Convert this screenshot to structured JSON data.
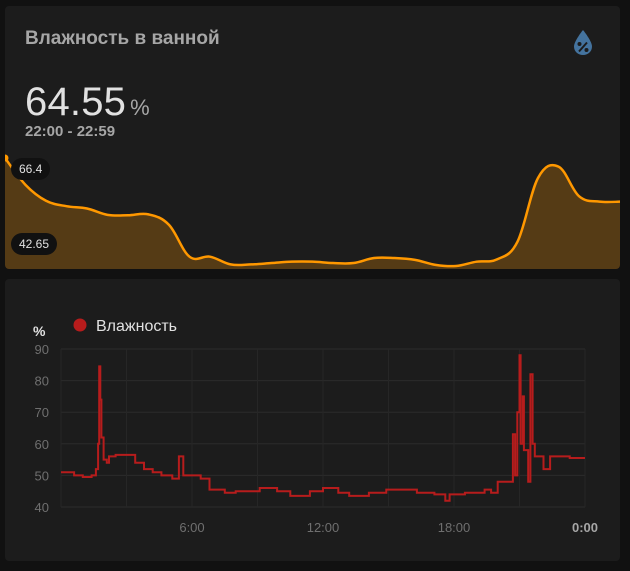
{
  "sensor": {
    "title": "Влажность в ванной",
    "value": "64.55",
    "unit": "%",
    "range": "22:00 - 22:59",
    "max_label": "66.4",
    "min_label": "42.65",
    "icon": "water-percent-icon",
    "accent_color": "#ff9800"
  },
  "history": {
    "unit_label": "%",
    "legend_label": "Влажность",
    "series_color": "#b71c1c"
  },
  "chart_data": [
    {
      "type": "area",
      "series": [
        {
          "values": [
            66.4,
            60.5,
            57.0,
            55.8,
            55.3,
            53.9,
            53.8,
            54.0,
            51.7,
            44.7,
            44.7,
            43.0,
            43.0,
            43.3,
            43.6,
            43.6,
            43.3,
            43.3,
            44.4,
            44.4,
            44.0,
            42.9,
            42.65,
            43.6,
            44.1,
            48.0,
            62.0,
            64.5,
            58.0,
            56.8,
            56.8
          ]
        }
      ]
    },
    {
      "type": "line",
      "ylabel": "%",
      "ylim": [
        40,
        90
      ],
      "y_ticks": [
        "40",
        "50",
        "60",
        "70",
        "80",
        "90"
      ],
      "x_ticks": [
        "6:00",
        "12:00",
        "18:00",
        "0:00"
      ],
      "x_tick_hours": [
        6,
        12,
        18,
        24
      ],
      "series": [
        {
          "name": "Влажность",
          "color": "#b71c1c",
          "points": [
            [
              0.0,
              51
            ],
            [
              0.6,
              51
            ],
            [
              0.6,
              50
            ],
            [
              1.0,
              50
            ],
            [
              1.0,
              49.5
            ],
            [
              1.4,
              49.5
            ],
            [
              1.4,
              50
            ],
            [
              1.6,
              50
            ],
            [
              1.6,
              52
            ],
            [
              1.7,
              52
            ],
            [
              1.7,
              60
            ],
            [
              1.75,
              60
            ],
            [
              1.75,
              84.5
            ],
            [
              1.8,
              84.5
            ],
            [
              1.8,
              74
            ],
            [
              1.85,
              74
            ],
            [
              1.85,
              62
            ],
            [
              1.95,
              62
            ],
            [
              1.95,
              55
            ],
            [
              2.1,
              55
            ],
            [
              2.1,
              54
            ],
            [
              2.2,
              54
            ],
            [
              2.2,
              56
            ],
            [
              2.5,
              56
            ],
            [
              2.5,
              56.5
            ],
            [
              3.4,
              56.5
            ],
            [
              3.4,
              54
            ],
            [
              3.8,
              54
            ],
            [
              3.8,
              52
            ],
            [
              4.2,
              52
            ],
            [
              4.2,
              51
            ],
            [
              4.6,
              51
            ],
            [
              4.6,
              50
            ],
            [
              5.1,
              50
            ],
            [
              5.1,
              49
            ],
            [
              5.4,
              49
            ],
            [
              5.4,
              56
            ],
            [
              5.6,
              56
            ],
            [
              5.6,
              50
            ],
            [
              6.4,
              50
            ],
            [
              6.4,
              49
            ],
            [
              6.8,
              49
            ],
            [
              6.8,
              45.5
            ],
            [
              7.5,
              45.5
            ],
            [
              7.5,
              44.5
            ],
            [
              8.0,
              44.5
            ],
            [
              8.0,
              45
            ],
            [
              9.1,
              45
            ],
            [
              9.1,
              46
            ],
            [
              9.9,
              46
            ],
            [
              9.9,
              45
            ],
            [
              10.5,
              45
            ],
            [
              10.5,
              43.5
            ],
            [
              11.4,
              43.5
            ],
            [
              11.4,
              45
            ],
            [
              12.0,
              45
            ],
            [
              12.0,
              46
            ],
            [
              12.7,
              46
            ],
            [
              12.7,
              44.5
            ],
            [
              13.2,
              44.5
            ],
            [
              13.2,
              43.5
            ],
            [
              14.1,
              43.5
            ],
            [
              14.1,
              44.5
            ],
            [
              14.9,
              44.5
            ],
            [
              14.9,
              45.5
            ],
            [
              16.3,
              45.5
            ],
            [
              16.3,
              44.5
            ],
            [
              17.1,
              44.5
            ],
            [
              17.1,
              44
            ],
            [
              17.6,
              44
            ],
            [
              17.6,
              42
            ],
            [
              17.8,
              42
            ],
            [
              17.8,
              44
            ],
            [
              18.5,
              44
            ],
            [
              18.5,
              44.5
            ],
            [
              19.4,
              44.5
            ],
            [
              19.4,
              45.5
            ],
            [
              19.7,
              45.5
            ],
            [
              19.7,
              44.5
            ],
            [
              20.0,
              44.5
            ],
            [
              20.0,
              48
            ],
            [
              20.7,
              48
            ],
            [
              20.7,
              63
            ],
            [
              20.8,
              63
            ],
            [
              20.8,
              50
            ],
            [
              20.9,
              50
            ],
            [
              20.9,
              70
            ],
            [
              21.0,
              70
            ],
            [
              21.0,
              88
            ],
            [
              21.05,
              88
            ],
            [
              21.05,
              60
            ],
            [
              21.15,
              60
            ],
            [
              21.15,
              75
            ],
            [
              21.2,
              75
            ],
            [
              21.2,
              58
            ],
            [
              21.4,
              58
            ],
            [
              21.4,
              48
            ],
            [
              21.5,
              48
            ],
            [
              21.5,
              82
            ],
            [
              21.6,
              82
            ],
            [
              21.6,
              60
            ],
            [
              21.7,
              60
            ],
            [
              21.7,
              56
            ],
            [
              22.1,
              56
            ],
            [
              22.1,
              52
            ],
            [
              22.4,
              52
            ],
            [
              22.4,
              56
            ],
            [
              23.3,
              56
            ],
            [
              23.3,
              55.5
            ],
            [
              24.0,
              55.5
            ]
          ]
        }
      ]
    }
  ]
}
